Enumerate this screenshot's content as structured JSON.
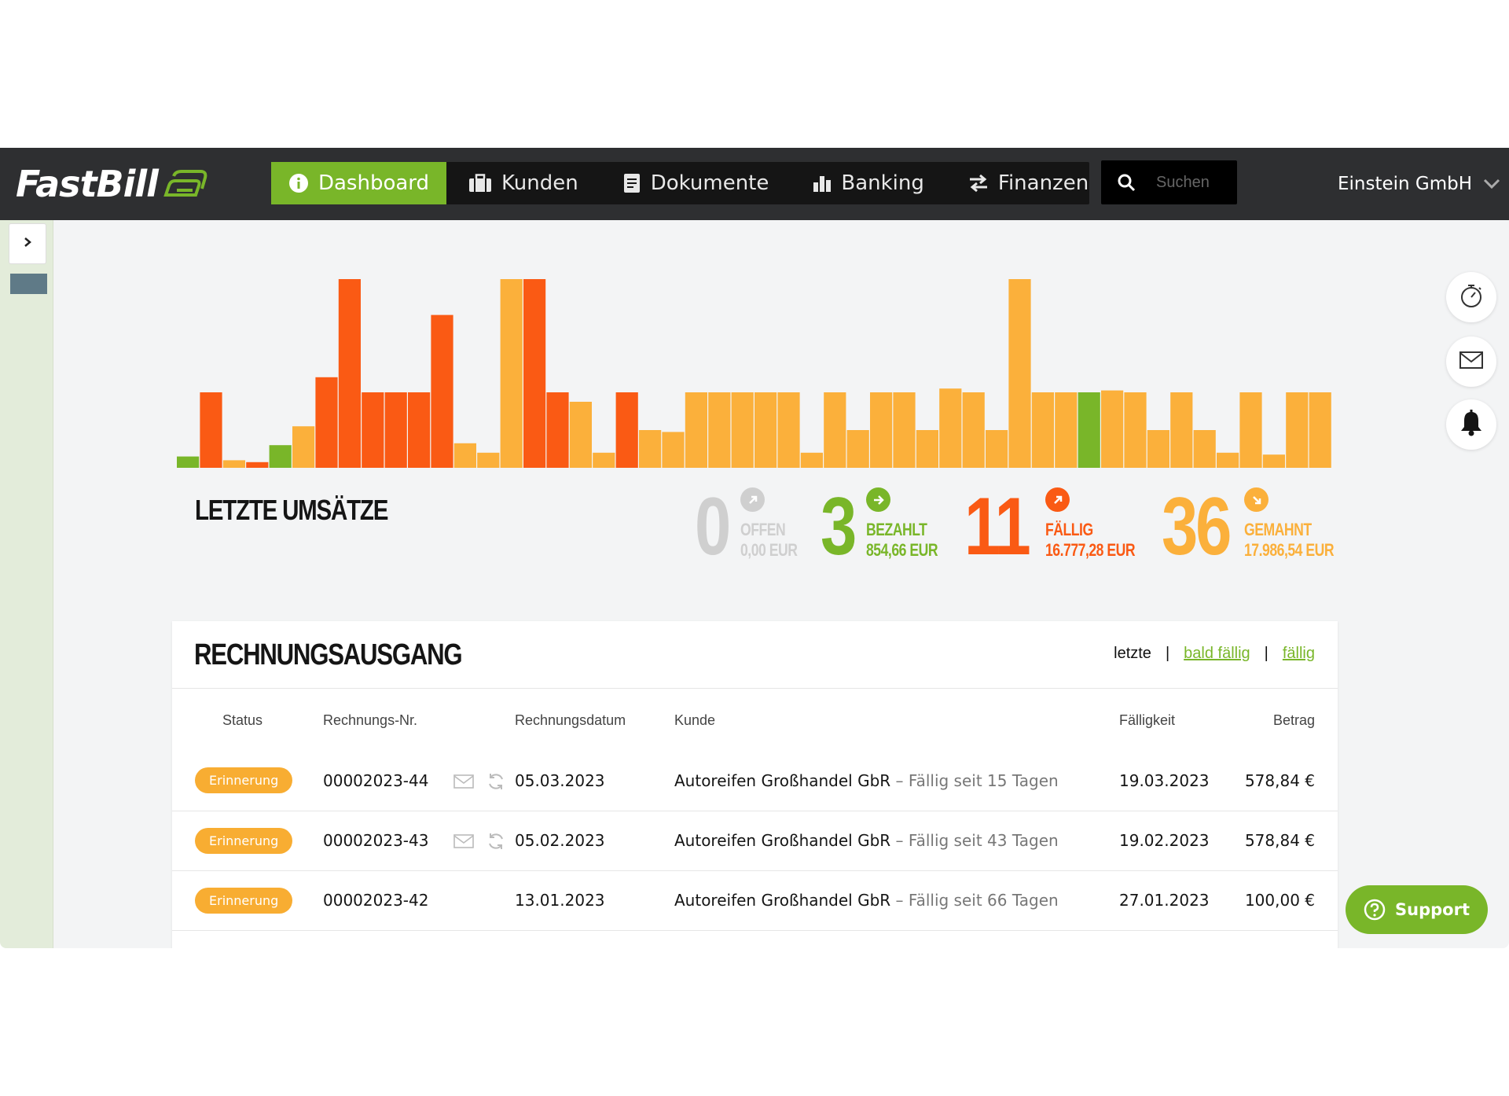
{
  "app": {
    "name": "FastBill"
  },
  "nav": {
    "items": [
      {
        "label": "Dashboard",
        "icon": "info-icon",
        "active": true
      },
      {
        "label": "Kunden",
        "icon": "briefcase-icon"
      },
      {
        "label": "Dokumente",
        "icon": "document-icon"
      },
      {
        "label": "Banking",
        "icon": "bar-chart-icon"
      },
      {
        "label": "Finanzen",
        "icon": "transfer-icon"
      }
    ],
    "search_placeholder": "Suchen",
    "account": "Einstein GmbH"
  },
  "colors": {
    "accent": "#79b629",
    "orange_dark": "#fa5a14",
    "orange_light": "#fbb03b",
    "grey": "#cfcfcf",
    "topbar": "#2e2f31"
  },
  "chart_data": {
    "type": "bar",
    "title": "LETZTE UMSÄTZE",
    "values": [
      6,
      40,
      4,
      3,
      12,
      22,
      48,
      100,
      40,
      40,
      40,
      81,
      13,
      8,
      100,
      100,
      40,
      35,
      8,
      40,
      20,
      19,
      40,
      40,
      40,
      40,
      40,
      8,
      40,
      20,
      40,
      40,
      20,
      42,
      40,
      20,
      100,
      40,
      40,
      40,
      41,
      40,
      20,
      40,
      20,
      8,
      40,
      7,
      40,
      40
    ],
    "colors": [
      "green",
      "dark",
      "light",
      "dark",
      "green",
      "light",
      "dark",
      "dark",
      "dark",
      "dark",
      "dark",
      "dark",
      "light",
      "light",
      "light",
      "dark",
      "dark",
      "light",
      "light",
      "dark",
      "light",
      "light",
      "light",
      "light",
      "light",
      "light",
      "light",
      "light",
      "light",
      "light",
      "light",
      "light",
      "light",
      "light",
      "light",
      "light",
      "light",
      "light",
      "light",
      "green",
      "light",
      "light",
      "light",
      "light",
      "light",
      "light",
      "light",
      "light",
      "light",
      "light"
    ],
    "ylim": [
      0,
      100
    ]
  },
  "stats": [
    {
      "count": "0",
      "label": "OFFEN",
      "amount": "0,00 EUR",
      "color": "#cfcfcf",
      "icon": "arrow-up-right-icon"
    },
    {
      "count": "3",
      "label": "BEZAHLT",
      "amount": "854,66 EUR",
      "color": "#79b629",
      "icon": "arrow-right-icon"
    },
    {
      "count": "11",
      "label": "FÄLLIG",
      "amount": "16.777,28 EUR",
      "color": "#fa5a14",
      "icon": "arrow-up-right-icon"
    },
    {
      "count": "36",
      "label": "GEMAHNT",
      "amount": "17.986,54 EUR",
      "color": "#fbb03b",
      "icon": "arrow-down-right-icon"
    }
  ],
  "invoices": {
    "title": "RECHNUNGSAUSGANG",
    "filters": {
      "current": "letzte",
      "soon": "bald fällig",
      "due": "fällig"
    },
    "columns": {
      "status": "Status",
      "number": "Rechnungs-Nr.",
      "date": "Rechnungsdatum",
      "customer": "Kunde",
      "due": "Fälligkeit",
      "amount": "Betrag"
    },
    "rows": [
      {
        "status": "Erinnerung",
        "number": "00002023-44",
        "date": "05.03.2023",
        "customer": "Autoreifen Großhandel GbR",
        "note": " – Fällig seit 15 Tagen",
        "due": "19.03.2023",
        "amount": "578,84 €",
        "icons": true
      },
      {
        "status": "Erinnerung",
        "number": "00002023-43",
        "date": "05.02.2023",
        "customer": "Autoreifen Großhandel GbR",
        "note": " – Fällig seit 43 Tagen",
        "due": "19.02.2023",
        "amount": "578,84 €",
        "icons": true
      },
      {
        "status": "Erinnerung",
        "number": "00002023-42",
        "date": "13.01.2023",
        "customer": "Autoreifen Großhandel GbR",
        "note": " – Fällig seit 66 Tagen",
        "due": "27.01.2023",
        "amount": "100,00 €",
        "icons": false
      }
    ]
  },
  "support": {
    "label": "Support"
  }
}
